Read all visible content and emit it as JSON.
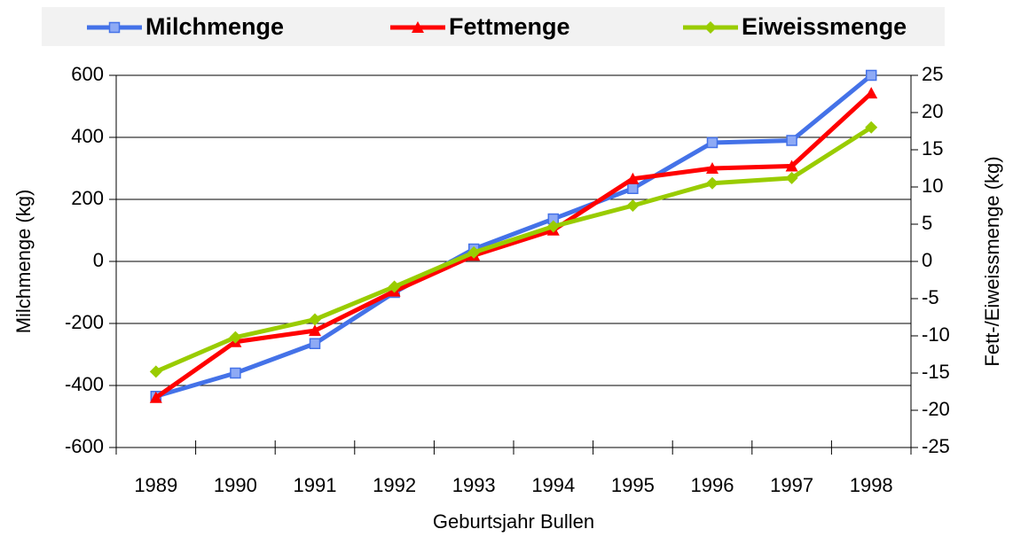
{
  "chart_data": {
    "type": "line",
    "x_label": "Geburtsjahr Bullen",
    "y_label": "Milchmenge (kg)",
    "y2_label": "Fett-/Eiweissmenge (kg)",
    "categories": [
      "1989",
      "1990",
      "1991",
      "1992",
      "1993",
      "1994",
      "1995",
      "1996",
      "1997",
      "1998"
    ],
    "series": [
      {
        "name": "Milchmenge",
        "color": "#4472e8",
        "marker": "square",
        "values": [
          -435,
          -360,
          -265,
          -100,
          40,
          137,
          235,
          383,
          390,
          600
        ]
      },
      {
        "name": "Fettmenge",
        "color": "#ff0000",
        "marker": "triangle",
        "axis": "y2",
        "values": [
          -18.3,
          -10.8,
          -9.3,
          -4.0,
          0.8,
          4.2,
          11.1,
          12.5,
          12.8,
          22.6
        ]
      },
      {
        "name": "Eiweissmenge",
        "color": "#99cc00",
        "marker": "diamond",
        "axis": "y2",
        "values": [
          -14.8,
          -10.2,
          -7.8,
          -3.4,
          1.2,
          4.7,
          7.5,
          10.5,
          11.2,
          18.0
        ]
      }
    ],
    "ylim": [
      -600,
      600
    ],
    "yticks": [
      -600,
      -400,
      -200,
      0,
      200,
      400,
      600
    ],
    "y2lim": [
      -25,
      25
    ],
    "y2ticks": [
      -25,
      -20,
      -15,
      -10,
      -5,
      0,
      5,
      10,
      15,
      20,
      25
    ],
    "grid": true,
    "legend": "top"
  }
}
